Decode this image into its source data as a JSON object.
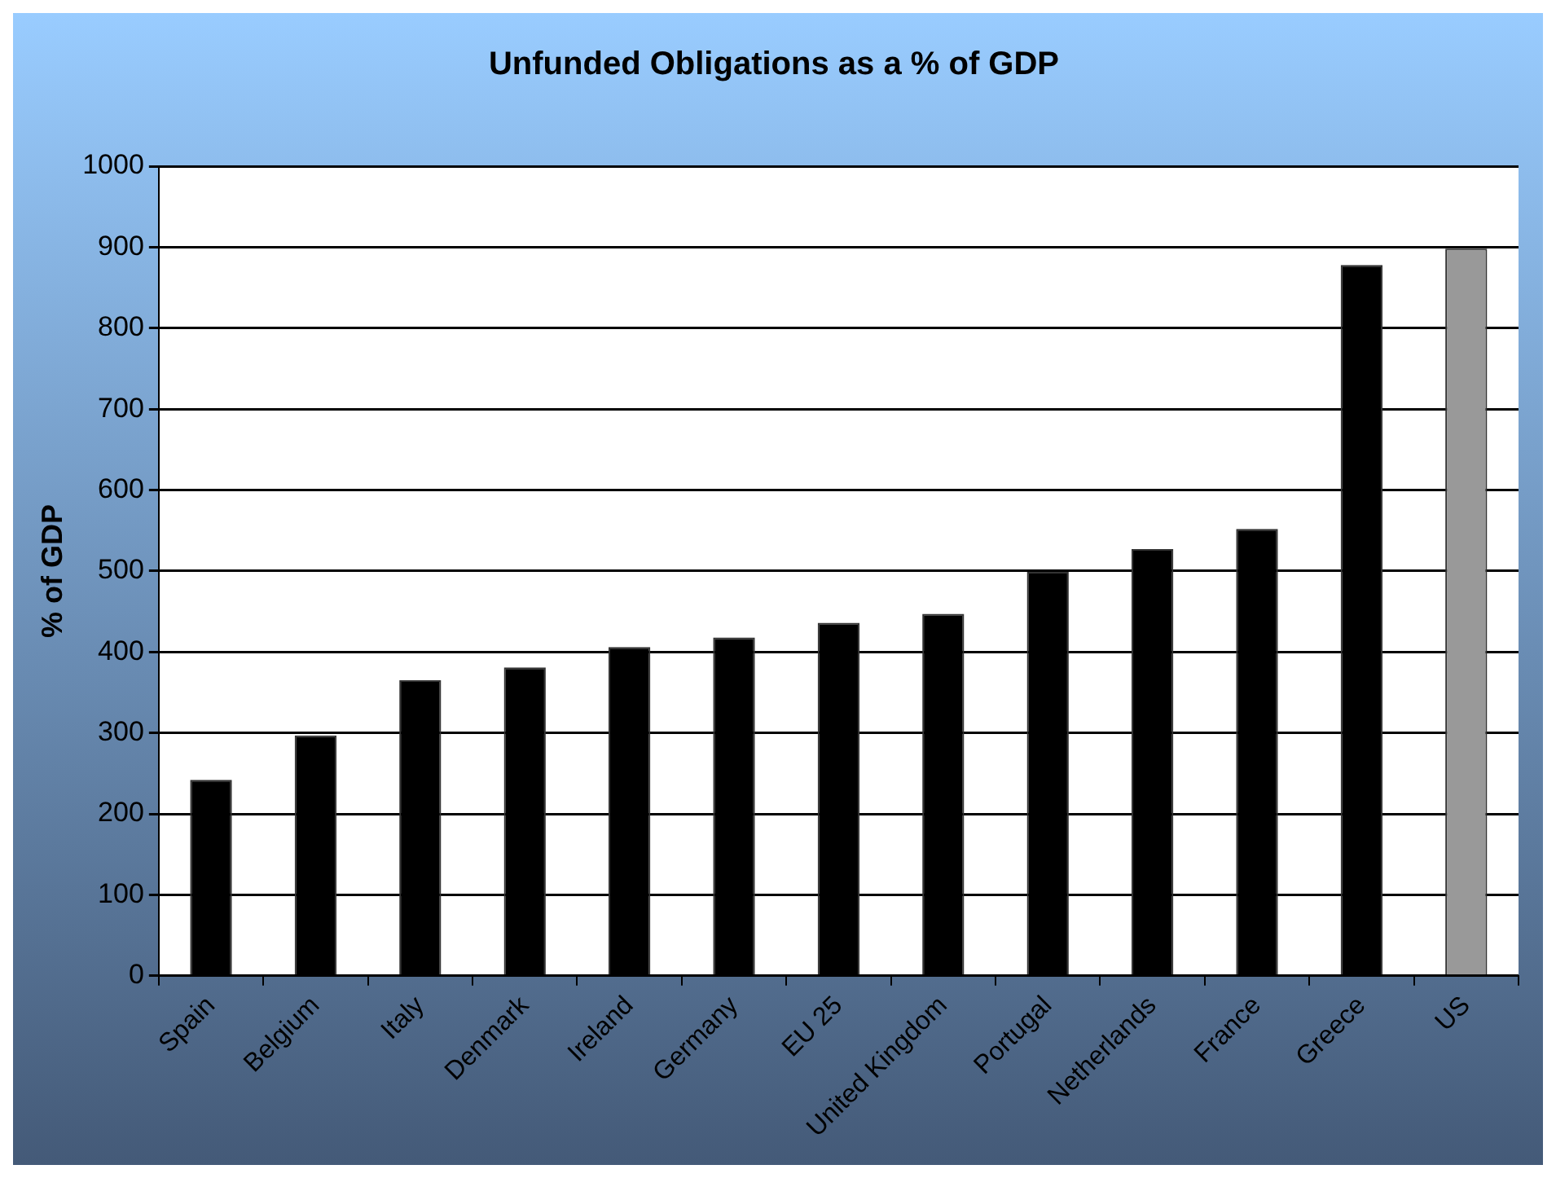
{
  "chart_data": {
    "type": "bar",
    "title": "Unfunded Obligations as a % of GDP",
    "ylabel": "% of GDP",
    "categories": [
      "Spain",
      "Belgium",
      "Italy",
      "Denmark",
      "Ireland",
      "Germany",
      "EU 25",
      "United Kingdom",
      "Portugal",
      "Netherlands",
      "France",
      "Greece",
      "US"
    ],
    "values": [
      242,
      297,
      365,
      381,
      406,
      418,
      436,
      447,
      499,
      527,
      552,
      878,
      898
    ],
    "colors": [
      "#000000",
      "#000000",
      "#000000",
      "#000000",
      "#000000",
      "#000000",
      "#000000",
      "#000000",
      "#000000",
      "#000000",
      "#000000",
      "#000000",
      "#999999"
    ],
    "ylim": [
      0,
      1000
    ],
    "yticks": [
      0,
      100,
      200,
      300,
      400,
      500,
      600,
      700,
      800,
      900,
      1000
    ],
    "grid": "y"
  }
}
